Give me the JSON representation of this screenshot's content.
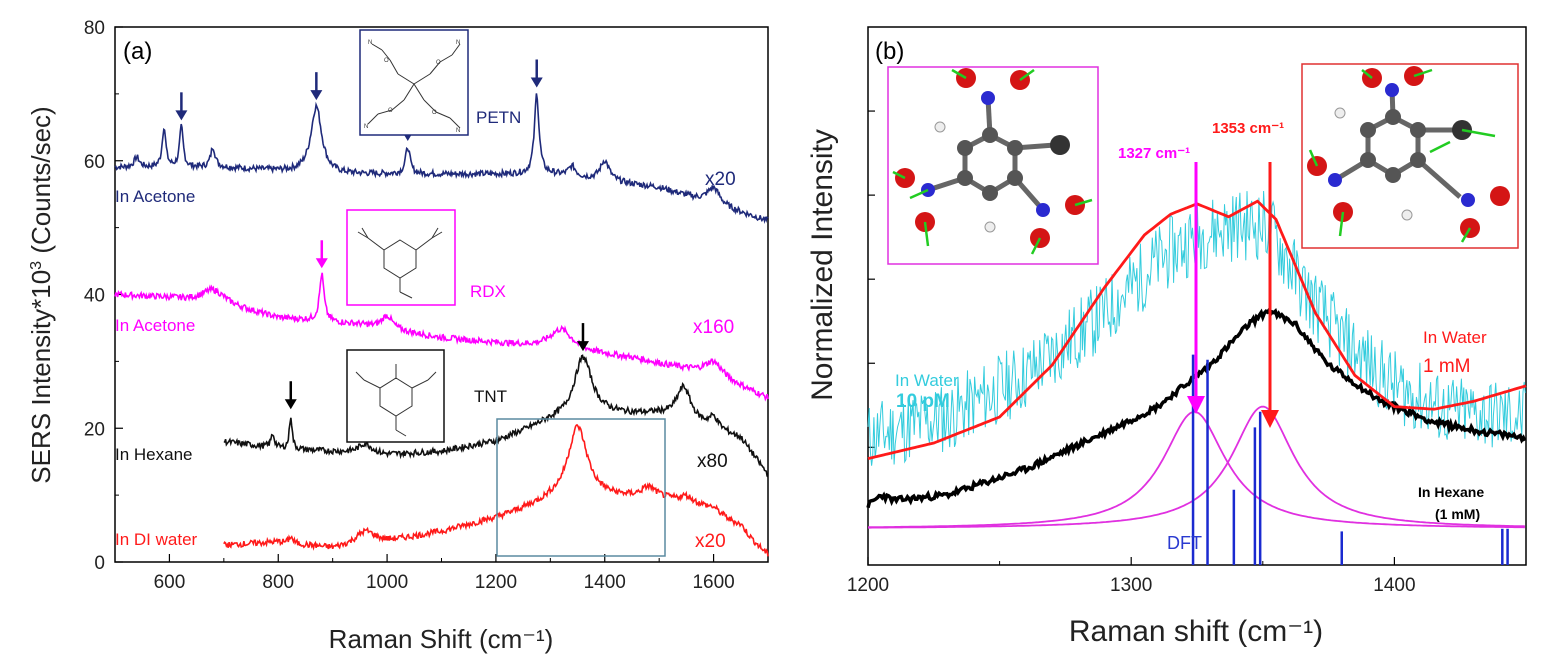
{
  "chart_data": [
    {
      "panel": "a",
      "type": "line",
      "panel_label": "(a)",
      "xlabel": "Raman Shift (cm⁻¹)",
      "ylabel_main": "SERS Intensity*10",
      "ylabel_sup": "3",
      "ylabel_tail": " (Counts/sec)",
      "xlim": [
        500,
        1700
      ],
      "ylim": [
        0,
        80
      ],
      "xticks": [
        600,
        800,
        1000,
        1200,
        1400,
        1600
      ],
      "yticks": [
        0,
        20,
        40,
        60,
        80
      ],
      "series": [
        {
          "name": "PETN",
          "solvent": "In Acetone",
          "scale": "x20",
          "color": "#1f2a7a",
          "baseline": [
            [
              500,
              59
            ],
            [
              700,
              59
            ],
            [
              900,
              58
            ],
            [
              1100,
              58
            ],
            [
              1300,
              58
            ],
            [
              1500,
              56
            ],
            [
              1700,
              51
            ]
          ],
          "peaks": [
            [
              540,
              1.5,
              6
            ],
            [
              590,
              6,
              4
            ],
            [
              622,
              6,
              4
            ],
            [
              680,
              3,
              5
            ],
            [
              870,
              10,
              12
            ],
            [
              1038,
              4,
              5
            ],
            [
              1275,
              12,
              5
            ],
            [
              1340,
              1.5,
              8
            ],
            [
              1400,
              3,
              10
            ],
            [
              1600,
              2.5,
              14
            ]
          ],
          "arrows": [
            622,
            870,
            1038,
            1275
          ]
        },
        {
          "name": "RDX",
          "solvent": "In Acetone",
          "scale": "x160",
          "color": "#ff00ff",
          "baseline": [
            [
              500,
              40
            ],
            [
              600,
              39.5
            ],
            [
              700,
              38.5
            ],
            [
              800,
              36.5
            ],
            [
              950,
              35.5
            ],
            [
              1100,
              33.5
            ],
            [
              1300,
              32
            ],
            [
              1450,
              30.5
            ],
            [
              1600,
              28
            ],
            [
              1700,
              24.5
            ]
          ],
          "peaks": [
            [
              680,
              2,
              25
            ],
            [
              880,
              7,
              5
            ],
            [
              1000,
              2,
              12
            ],
            [
              1320,
              3,
              25
            ],
            [
              1600,
              2,
              20
            ]
          ],
          "arrows": [
            880
          ]
        },
        {
          "name": "TNT",
          "solvent": "In Hexane",
          "scale": "x80",
          "color": "#111111",
          "baseline": [
            [
              700,
              18
            ],
            [
              800,
              17
            ],
            [
              1000,
              16
            ],
            [
              1100,
              16.5
            ],
            [
              1200,
              18
            ],
            [
              1300,
              21
            ],
            [
              1400,
              22
            ],
            [
              1500,
              22
            ],
            [
              1600,
              20
            ],
            [
              1650,
              18.5
            ],
            [
              1700,
              13
            ]
          ],
          "peaks": [
            [
              790,
              2,
              4
            ],
            [
              823,
              5,
              3
            ],
            [
              960,
              1.5,
              15
            ],
            [
              1360,
              9,
              20
            ],
            [
              1545,
              5,
              16
            ],
            [
              1600,
              1.5,
              10
            ]
          ],
          "arrows": [
            823,
            1360
          ]
        },
        {
          "name": "TNT",
          "solvent": "In DI water",
          "scale": "x20",
          "color": "#ff1a1a",
          "baseline": [
            [
              700,
              2.5
            ],
            [
              800,
              3
            ],
            [
              900,
              2
            ],
            [
              1000,
              3
            ],
            [
              1100,
              4.5
            ],
            [
              1200,
              6.5
            ],
            [
              1300,
              9
            ],
            [
              1400,
              9.5
            ],
            [
              1500,
              9.5
            ],
            [
              1600,
              8
            ],
            [
              1700,
              1
            ]
          ],
          "peaks": [
            [
              823,
              1,
              4
            ],
            [
              960,
              2,
              22
            ],
            [
              1350,
              11,
              22
            ],
            [
              1480,
              1.5,
              15
            ],
            [
              1550,
              1,
              15
            ],
            [
              1650,
              1,
              15
            ]
          ],
          "arrows": []
        }
      ],
      "inset_labels": [
        "PETN",
        "RDX",
        "TNT"
      ]
    },
    {
      "panel": "b",
      "type": "line",
      "panel_label": "(b)",
      "xlabel": "Raman shift (cm⁻¹)",
      "ylabel": "Normalized Intensity",
      "xlim": [
        1200,
        1450
      ],
      "ylim": [
        0,
        1
      ],
      "xticks": [
        1200,
        1300,
        1400
      ],
      "annotations": {
        "peak1": "1327 cm⁻¹",
        "peak2": "1353 cm⁻¹",
        "water_pm_1": "In Water",
        "water_pm_2": "10 pM",
        "water_mm_1": "In Water",
        "water_mm_2": "1 mM",
        "hexane_1": "In Hexane",
        "hexane_2": "(1 mM)",
        "dft": "DFT"
      },
      "series": [
        {
          "name": "In Water 1 mM",
          "color": "#ff1a1a",
          "points": [
            [
              1200,
              0.17
            ],
            [
              1225,
              0.2
            ],
            [
              1250,
              0.25
            ],
            [
              1270,
              0.35
            ],
            [
              1290,
              0.5
            ],
            [
              1305,
              0.6
            ],
            [
              1315,
              0.64
            ],
            [
              1325,
              0.66
            ],
            [
              1337,
              0.635
            ],
            [
              1348,
              0.665
            ],
            [
              1355,
              0.63
            ],
            [
              1370,
              0.45
            ],
            [
              1385,
              0.33
            ],
            [
              1400,
              0.27
            ],
            [
              1415,
              0.265
            ],
            [
              1430,
              0.28
            ],
            [
              1450,
              0.31
            ]
          ]
        },
        {
          "name": "In Hexane (1 mM)",
          "color": "#000000",
          "points": [
            [
              1200,
              0.08
            ],
            [
              1205,
              0.1
            ],
            [
              1210,
              0.09
            ],
            [
              1230,
              0.1
            ],
            [
              1260,
              0.15
            ],
            [
              1290,
              0.22
            ],
            [
              1310,
              0.27
            ],
            [
              1330,
              0.35
            ],
            [
              1345,
              0.43
            ],
            [
              1352,
              0.455
            ],
            [
              1362,
              0.43
            ],
            [
              1375,
              0.35
            ],
            [
              1395,
              0.28
            ],
            [
              1415,
              0.24
            ],
            [
              1435,
              0.22
            ],
            [
              1450,
              0.21
            ]
          ]
        },
        {
          "name": "In Water 10 pM",
          "color": "#33ccdd",
          "center": [
            [
              1200,
              0.21
            ],
            [
              1230,
              0.25
            ],
            [
              1260,
              0.33
            ],
            [
              1290,
              0.45
            ],
            [
              1310,
              0.55
            ],
            [
              1325,
              0.6
            ],
            [
              1340,
              0.62
            ],
            [
              1352,
              0.62
            ],
            [
              1365,
              0.5
            ],
            [
              1380,
              0.4
            ],
            [
              1400,
              0.31
            ],
            [
              1420,
              0.26
            ],
            [
              1450,
              0.25
            ]
          ]
        },
        {
          "name": "Lorentzian 1327",
          "color": "#e030e0",
          "center": 1324,
          "amplitude": 0.225,
          "width": 14.5,
          "offset": 0.035
        },
        {
          "name": "Lorentzian 1353",
          "color": "#e030e0",
          "center": 1350,
          "amplitude": 0.235,
          "width": 14.5,
          "offset": 0.035
        }
      ],
      "dft_sticks": [
        [
          1323.5,
          0.37
        ],
        [
          1329,
          0.36
        ],
        [
          1339,
          0.11
        ],
        [
          1347,
          0.23
        ],
        [
          1349,
          0.26
        ],
        [
          1380,
          0.03
        ],
        [
          1441,
          0.035
        ],
        [
          1443,
          0.035
        ]
      ]
    }
  ]
}
